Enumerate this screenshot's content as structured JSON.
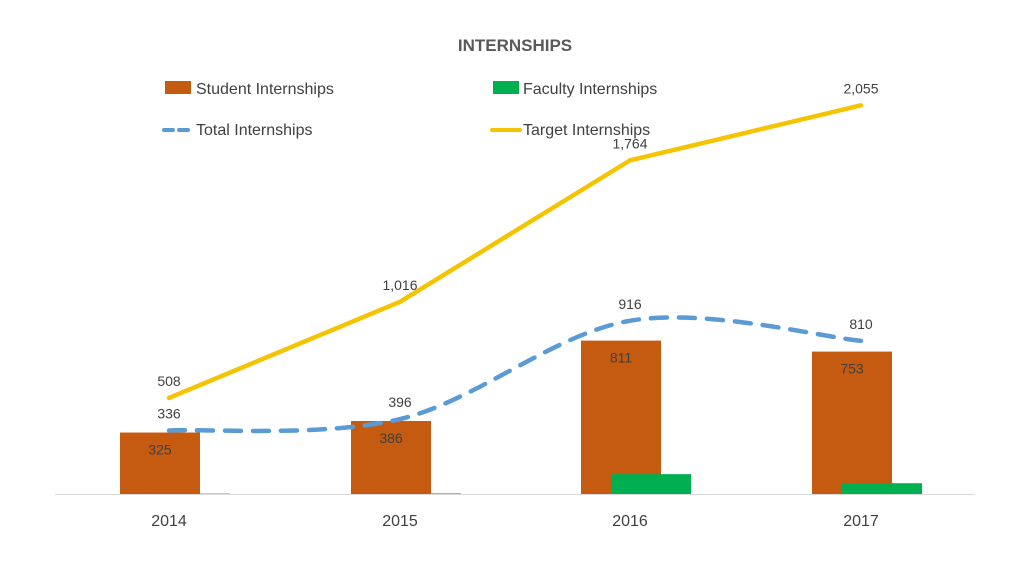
{
  "chart_data": {
    "type": "bar",
    "title": "INTERNSHIPS",
    "categories": [
      "2014",
      "2015",
      "2016",
      "2017"
    ],
    "series": [
      {
        "name": "Student Internships",
        "kind": "bar",
        "color": "#C55A11",
        "values": [
          325,
          386,
          811,
          753
        ],
        "labels": [
          "325",
          "386",
          "811",
          "753"
        ]
      },
      {
        "name": "Faculty Internships",
        "kind": "bar",
        "color": "#00B050",
        "values": [
          2,
          3,
          105,
          57
        ],
        "labels": []
      },
      {
        "name": "Total Internships",
        "kind": "line",
        "style": "dashed",
        "color": "#5B9BD5",
        "values": [
          336,
          396,
          916,
          810
        ],
        "labels": [
          "336",
          "396",
          "916",
          "810"
        ]
      },
      {
        "name": "Target Internships",
        "kind": "line",
        "style": "solid",
        "color": "#F5C400",
        "values": [
          508,
          1016,
          1764,
          2055
        ],
        "labels": [
          "508",
          "1,016",
          "1,764",
          "2,055"
        ]
      }
    ],
    "ylim": [
      0,
      2300
    ],
    "xlabel": "",
    "ylabel": "",
    "grid": false,
    "legend_position": "top"
  }
}
